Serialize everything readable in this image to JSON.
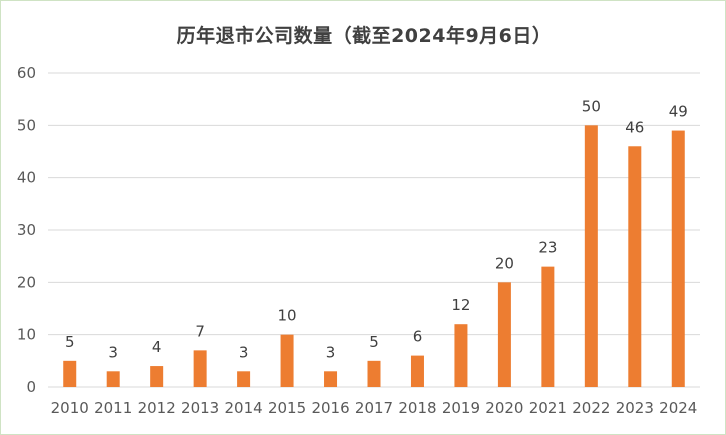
{
  "chart_data": {
    "type": "bar",
    "title": "历年退市公司数量（截至2024年9月6日）",
    "categories": [
      "2010",
      "2011",
      "2012",
      "2013",
      "2014",
      "2015",
      "2016",
      "2017",
      "2018",
      "2019",
      "2020",
      "2021",
      "2022",
      "2023",
      "2024"
    ],
    "values": [
      5,
      3,
      4,
      7,
      3,
      10,
      3,
      5,
      6,
      12,
      20,
      23,
      50,
      46,
      49
    ],
    "ylim": [
      0,
      60
    ],
    "yticks": [
      0,
      10,
      20,
      30,
      40,
      50,
      60
    ],
    "grid": true,
    "legend": "none",
    "bar_color": "#ed7d31"
  }
}
